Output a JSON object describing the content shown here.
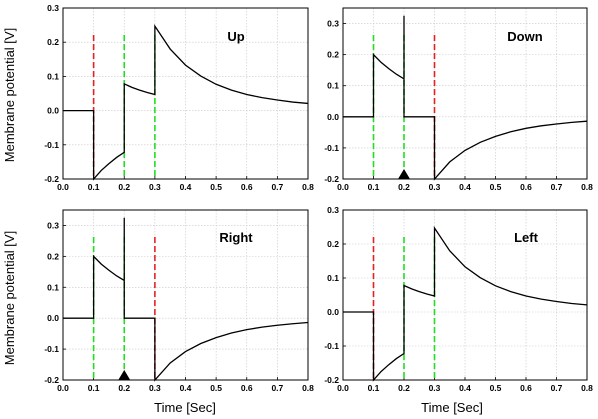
{
  "figure": {
    "ylabel": "Membrane potential [V]",
    "xlabel": "Time [Sec]"
  },
  "colors": {
    "curve": "#000000",
    "red_marker": "#e32222",
    "green_marker": "#22dd22",
    "grid": "#c8c8c8"
  },
  "chart_data": [
    {
      "type": "line",
      "title": "Up",
      "xlabel": "Time [Sec]",
      "ylabel": "Membrane potential [V]",
      "xlim": [
        0.0,
        0.8
      ],
      "ylim": [
        -0.2,
        0.3
      ],
      "xticks": [
        "0.0",
        "0.1",
        "0.2",
        "0.3",
        "0.4",
        "0.5",
        "0.6",
        "0.7",
        "0.8"
      ],
      "yticks": [
        "-0.2",
        "-0.1",
        "0.0",
        "0.1",
        "0.2",
        "0.3"
      ],
      "grid": true,
      "markers": [
        {
          "x": 0.1,
          "color": "red",
          "style": "dashed"
        },
        {
          "x": 0.2,
          "color": "green",
          "style": "dashed"
        },
        {
          "x": 0.3,
          "color": "green",
          "style": "dashed"
        }
      ],
      "spike": null,
      "series": [
        {
          "x": [
            0.0,
            0.1,
            0.1,
            0.125,
            0.15,
            0.175,
            0.2,
            0.2,
            0.225,
            0.25,
            0.275,
            0.3,
            0.3,
            0.35,
            0.4,
            0.45,
            0.5,
            0.55,
            0.6,
            0.65,
            0.7,
            0.75,
            0.8
          ],
          "y": [
            0.0,
            0.0,
            -0.2,
            -0.175,
            -0.155,
            -0.137,
            -0.122,
            0.078,
            0.068,
            0.06,
            0.053,
            0.047,
            0.247,
            0.18,
            0.133,
            0.101,
            0.077,
            0.06,
            0.047,
            0.038,
            0.031,
            0.025,
            0.021
          ]
        }
      ]
    },
    {
      "type": "line",
      "title": "Down",
      "xlabel": "Time [Sec]",
      "ylabel": "Membrane potential [V]",
      "xlim": [
        0.0,
        0.8
      ],
      "ylim": [
        -0.2,
        0.35
      ],
      "xticks": [
        "0.0",
        "0.1",
        "0.2",
        "0.3",
        "0.4",
        "0.5",
        "0.6",
        "0.7",
        "0.8"
      ],
      "yticks": [
        "-0.2",
        "-0.1",
        "0.0",
        "0.1",
        "0.2",
        "0.3"
      ],
      "grid": true,
      "markers": [
        {
          "x": 0.1,
          "color": "green",
          "style": "dashed"
        },
        {
          "x": 0.2,
          "color": "green",
          "style": "dashed"
        },
        {
          "x": 0.3,
          "color": "red",
          "style": "dashed"
        }
      ],
      "spike": {
        "x": 0.2,
        "peak": 0.325,
        "triangle": true
      },
      "series": [
        {
          "x": [
            0.0,
            0.1,
            0.1,
            0.125,
            0.15,
            0.175,
            0.2,
            0.2,
            0.2,
            0.3,
            0.3,
            0.35,
            0.4,
            0.45,
            0.5,
            0.55,
            0.6,
            0.65,
            0.7,
            0.75,
            0.8
          ],
          "y": [
            0.0,
            0.0,
            0.2,
            0.175,
            0.155,
            0.137,
            0.122,
            0.325,
            0.0,
            0.0,
            -0.2,
            -0.145,
            -0.108,
            -0.082,
            -0.063,
            -0.048,
            -0.037,
            -0.029,
            -0.023,
            -0.018,
            -0.014
          ]
        }
      ]
    },
    {
      "type": "line",
      "title": "Right",
      "xlabel": "Time [Sec]",
      "ylabel": "Membrane potential [V]",
      "xlim": [
        0.0,
        0.8
      ],
      "ylim": [
        -0.2,
        0.35
      ],
      "xticks": [
        "0.0",
        "0.1",
        "0.2",
        "0.3",
        "0.4",
        "0.5",
        "0.6",
        "0.7",
        "0.8"
      ],
      "yticks": [
        "-0.2",
        "-0.1",
        "0.0",
        "0.1",
        "0.2",
        "0.3"
      ],
      "grid": true,
      "markers": [
        {
          "x": 0.1,
          "color": "green",
          "style": "dashed"
        },
        {
          "x": 0.2,
          "color": "green",
          "style": "dashed"
        },
        {
          "x": 0.3,
          "color": "red",
          "style": "dashed"
        }
      ],
      "spike": {
        "x": 0.2,
        "peak": 0.325,
        "triangle": true
      },
      "series": [
        {
          "x": [
            0.0,
            0.1,
            0.1,
            0.125,
            0.15,
            0.175,
            0.2,
            0.2,
            0.2,
            0.3,
            0.3,
            0.35,
            0.4,
            0.45,
            0.5,
            0.55,
            0.6,
            0.65,
            0.7,
            0.75,
            0.8
          ],
          "y": [
            0.0,
            0.0,
            0.2,
            0.175,
            0.155,
            0.137,
            0.122,
            0.325,
            0.0,
            0.0,
            -0.2,
            -0.145,
            -0.108,
            -0.082,
            -0.063,
            -0.048,
            -0.037,
            -0.029,
            -0.023,
            -0.018,
            -0.014
          ]
        }
      ]
    },
    {
      "type": "line",
      "title": "Left",
      "xlabel": "Time [Sec]",
      "ylabel": "Membrane potential [V]",
      "xlim": [
        0.0,
        0.8
      ],
      "ylim": [
        -0.2,
        0.3
      ],
      "xticks": [
        "0.0",
        "0.1",
        "0.2",
        "0.3",
        "0.4",
        "0.5",
        "0.6",
        "0.7",
        "0.8"
      ],
      "yticks": [
        "-0.2",
        "-0.1",
        "0.0",
        "0.1",
        "0.2",
        "0.3"
      ],
      "grid": true,
      "markers": [
        {
          "x": 0.1,
          "color": "red",
          "style": "dashed"
        },
        {
          "x": 0.2,
          "color": "green",
          "style": "dashed"
        },
        {
          "x": 0.3,
          "color": "green",
          "style": "dashed"
        }
      ],
      "spike": null,
      "series": [
        {
          "x": [
            0.0,
            0.1,
            0.1,
            0.125,
            0.15,
            0.175,
            0.2,
            0.2,
            0.225,
            0.25,
            0.275,
            0.3,
            0.3,
            0.35,
            0.4,
            0.45,
            0.5,
            0.55,
            0.6,
            0.65,
            0.7,
            0.75,
            0.8
          ],
          "y": [
            0.0,
            0.0,
            -0.2,
            -0.175,
            -0.155,
            -0.137,
            -0.122,
            0.078,
            0.068,
            0.06,
            0.053,
            0.047,
            0.247,
            0.18,
            0.133,
            0.101,
            0.077,
            0.06,
            0.047,
            0.038,
            0.031,
            0.025,
            0.021
          ]
        }
      ]
    }
  ]
}
